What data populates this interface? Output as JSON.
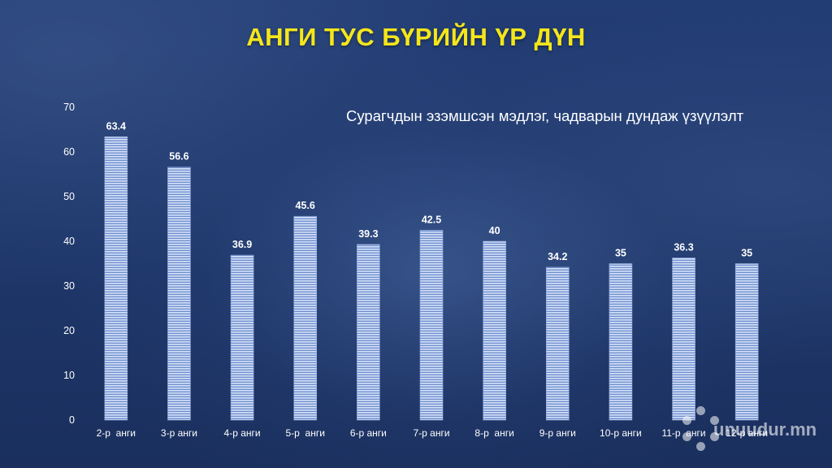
{
  "slide": {
    "title": "АНГИ ТУС БҮРИЙН ҮР ДҮН",
    "watermark": "unuudur.mn"
  },
  "colors": {
    "title": "#f5e61a",
    "bar": "#a9c1ea",
    "text": "#ffffff"
  },
  "chart_data": {
    "type": "bar",
    "title": "Сурагчдын эзэмшсэн мэдлэг, чадварын дундаж үзүүлэлт",
    "categories": [
      "2-р  анги",
      "3-р анги",
      "4-р анги",
      "5-р  анги",
      "6-р анги",
      "7-р анги",
      "8-р  анги",
      "9-р анги",
      "10-р анги",
      "11-р  анги",
      "12-р анги"
    ],
    "values": [
      63.4,
      56.6,
      36.9,
      45.6,
      39.3,
      42.5,
      40,
      34.2,
      35,
      36.3,
      35
    ],
    "value_labels": [
      "63.4",
      "56.6",
      "36.9",
      "45.6",
      "39.3",
      "42.5",
      "40",
      "34.2",
      "35",
      "36.3",
      "35"
    ],
    "ylim": [
      0,
      70
    ],
    "yticks": [
      "0",
      "10",
      "20",
      "30",
      "40",
      "50",
      "60",
      "70"
    ],
    "xlabel": "",
    "ylabel": "",
    "grid": false,
    "legend": "none"
  }
}
